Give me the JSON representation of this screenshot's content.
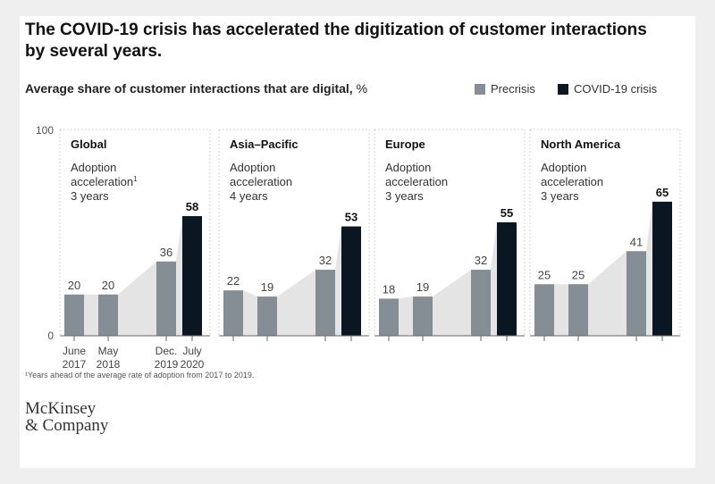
{
  "title": "The COVID-19 crisis has accelerated the digitization of customer interactions by several years.",
  "subtitle": "Average share of customer interactions that are digital,",
  "subtitle_unit": "%",
  "legend": [
    {
      "label": "Precrisis",
      "color": "#858e94"
    },
    {
      "label": "COVID-19 crisis",
      "color": "#0a1622"
    }
  ],
  "footnote": "¹Years ahead of the average rate of adoption from 2017 to 2019.",
  "logo": {
    "line1": "McKinsey",
    "line2": "& Company"
  },
  "chart_data": {
    "type": "bar",
    "ylim": [
      0,
      100
    ],
    "y_ticks": [
      "100",
      "0"
    ],
    "categories": [
      "June 2017",
      "May 2018",
      "Dec. 2019",
      "July 2020"
    ],
    "x_tick_labels": [
      [
        "June",
        "2017"
      ],
      [
        "May",
        "2018"
      ],
      [
        "Dec.",
        "2019"
      ],
      [
        "July",
        "2020"
      ]
    ],
    "panels": [
      {
        "region": "Global",
        "note": [
          "Adoption",
          "acceleration",
          "3 years"
        ],
        "note_sup": "1",
        "values": [
          20,
          20,
          36,
          58
        ],
        "labels": [
          "20",
          "20",
          "36",
          "58"
        ]
      },
      {
        "region": "Asia–Pacific",
        "note": [
          "Adoption",
          "acceleration",
          "4 years"
        ],
        "values": [
          22,
          19,
          32,
          53
        ],
        "labels": [
          "22",
          "19",
          "32",
          "53"
        ]
      },
      {
        "region": "Europe",
        "note": [
          "Adoption",
          "acceleration",
          "3 years"
        ],
        "values": [
          18,
          19,
          32,
          55
        ],
        "labels": [
          "18",
          "19",
          "32",
          "55"
        ]
      },
      {
        "region": "North America",
        "note": [
          "Adoption",
          "acceleration",
          "3 years"
        ],
        "values": [
          25,
          25,
          41,
          65
        ],
        "labels": [
          "25",
          "25",
          "41",
          "65"
        ]
      }
    ],
    "series": [
      {
        "name": "Precrisis",
        "color": "#858e94",
        "indices": [
          0,
          1,
          2
        ]
      },
      {
        "name": "COVID-19 crisis",
        "color": "#0a1622",
        "indices": [
          3
        ]
      }
    ],
    "trend_fill_color": "#e4e4e4"
  }
}
